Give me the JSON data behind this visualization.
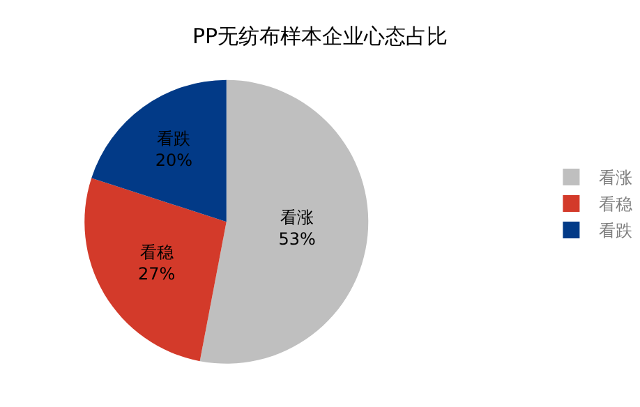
{
  "chart_data": {
    "type": "pie",
    "title": "PP无纺布样本企业心态占比",
    "categories": [
      "看涨",
      "看稳",
      "看跌"
    ],
    "values": [
      53,
      27,
      20
    ],
    "value_labels": [
      "53%",
      "27%",
      "20%"
    ],
    "colors": [
      "#bfbfbf",
      "#d33a2a",
      "#023a87"
    ],
    "legend": "right"
  }
}
